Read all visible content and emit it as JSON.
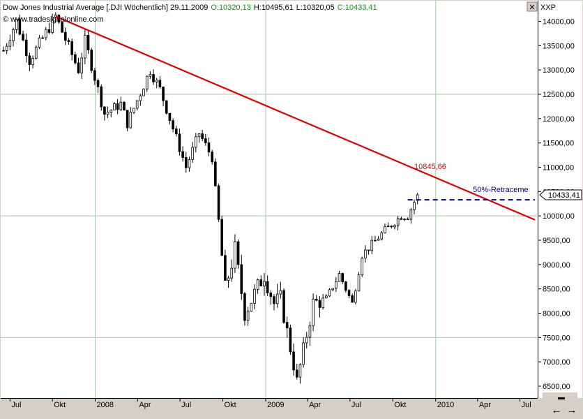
{
  "header": {
    "title": "Dow Jones Industrial Average [.DJI  Wöchentlich] 29.11.2009",
    "open": "O:10320,13",
    "high": "H:10495,61",
    "low": "L:10320,05",
    "close": "C:10433,41",
    "watermark": "© www.tradesignalonline.com"
  },
  "window": {
    "close_label": "✕",
    "minimize_label": "▬",
    "scale_label": "XXP",
    "left_arrow": "←",
    "right_arrow": "→"
  },
  "colors": {
    "background": "#ffffff",
    "frame": "#d4d0c8",
    "grid": "#a9c7a9",
    "up_candle": "#ffffff",
    "down_candle": "#000000",
    "trendline": "#e00000",
    "retracement": "#000080",
    "open_color": "#00a000",
    "close_color": "#00a000"
  },
  "chart_data": {
    "type": "candlestick",
    "x_ticks": [
      "Jul",
      "Okt",
      "2008",
      "Apr",
      "Jul",
      "Okt",
      "2009",
      "Apr",
      "Jul",
      "Okt",
      "2010",
      "Apr",
      "Jul"
    ],
    "y_ticks": [
      "14000,00",
      "13500,00",
      "13000,00",
      "12500,00",
      "12000,00",
      "11500,00",
      "11000,00",
      "10500,00",
      "10000,00",
      "9500,00",
      "9000,00",
      "8500,00",
      "8000,00",
      "7500,00",
      "7000,00",
      "6500,00"
    ],
    "y_range": [
      6400,
      14150
    ],
    "grid": true,
    "last_price_label": "10433,41",
    "trendline": {
      "start": {
        "date": "2007-10-08",
        "value": 14100
      },
      "end": {
        "date": "2010-08-02",
        "value": 9920
      },
      "label": "10845,66"
    },
    "retracement": {
      "value": 10330,
      "label": "50%-Retraceme",
      "from_date": "2009-11-02",
      "to_date": "2010-08-02"
    },
    "anchors": [
      [
        "2007-06-18",
        13400
      ],
      [
        "2007-07-16",
        14000
      ],
      [
        "2007-08-13",
        13200
      ],
      [
        "2007-10-08",
        14100
      ],
      [
        "2007-11-26",
        13000
      ],
      [
        "2007-12-10",
        13600
      ],
      [
        "2008-01-21",
        12100
      ],
      [
        "2008-02-25",
        12300
      ],
      [
        "2008-03-10",
        11900
      ],
      [
        "2008-04-28",
        13000
      ],
      [
        "2008-05-19",
        12600
      ],
      [
        "2008-07-14",
        11000
      ],
      [
        "2008-08-11",
        11700
      ],
      [
        "2008-09-08",
        11200
      ],
      [
        "2008-10-06",
        8500
      ],
      [
        "2008-10-27",
        9300
      ],
      [
        "2008-11-17",
        8000
      ],
      [
        "2008-12-29",
        8800
      ],
      [
        "2009-01-19",
        8200
      ],
      [
        "2009-02-02",
        8300
      ],
      [
        "2009-03-09",
        6600
      ],
      [
        "2009-04-13",
        8200
      ],
      [
        "2009-05-11",
        8300
      ],
      [
        "2009-06-08",
        8800
      ],
      [
        "2009-07-06",
        8200
      ],
      [
        "2009-07-27",
        9200
      ],
      [
        "2009-09-14",
        9700
      ],
      [
        "2009-10-19",
        10000
      ],
      [
        "2009-11-02",
        10000
      ],
      [
        "2009-11-23",
        10433
      ]
    ]
  }
}
